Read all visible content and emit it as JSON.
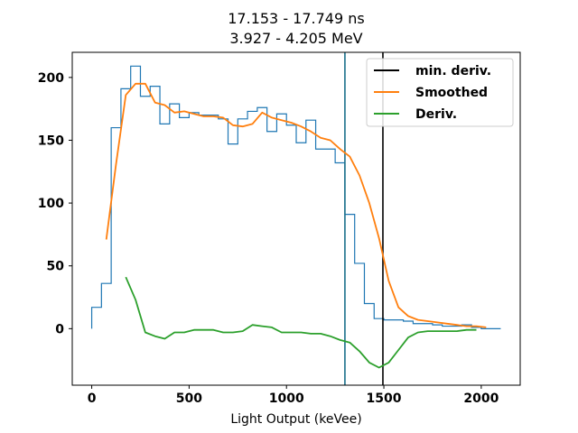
{
  "chart_data": {
    "type": "line",
    "title_lines": [
      "17.153 - 17.749 ns",
      "3.927 - 4.205 MeV"
    ],
    "xlabel": "Light Output (keVee)",
    "ylabel": "",
    "xlim": [
      -100,
      2200
    ],
    "ylim": [
      -45,
      220
    ],
    "xticks": [
      0,
      500,
      1000,
      1500,
      2000
    ],
    "yticks": [
      0,
      50,
      100,
      150,
      200
    ],
    "grid": false,
    "legend_position": "upper right",
    "histogram": {
      "name": "",
      "color": "#1f77b4",
      "bin_width": 50,
      "edges": [
        0,
        50,
        100,
        150,
        200,
        250,
        300,
        350,
        400,
        450,
        500,
        550,
        600,
        650,
        700,
        750,
        800,
        850,
        900,
        950,
        1000,
        1050,
        1100,
        1150,
        1200,
        1250,
        1300,
        1350,
        1400,
        1450,
        1500,
        1550,
        1600,
        1650,
        1700,
        1750,
        1800,
        1850,
        1900,
        1950,
        2000,
        2050,
        2100
      ],
      "counts": [
        17,
        36,
        160,
        191,
        209,
        185,
        193,
        163,
        179,
        168,
        172,
        170,
        170,
        167,
        147,
        167,
        173,
        176,
        157,
        171,
        162,
        148,
        166,
        143,
        143,
        132,
        91,
        52,
        20,
        8,
        7,
        7,
        6,
        4,
        4,
        3,
        2,
        2,
        3,
        1,
        0,
        0
      ]
    },
    "vertical_lines": [
      {
        "name": "",
        "x": 1300,
        "color": "#1a6f8a"
      },
      {
        "name": "min. deriv.",
        "x": 1495,
        "color": "#000000"
      }
    ],
    "series": [
      {
        "name": "Smoothed",
        "color": "#ff7f0e",
        "x": [
          75,
          125,
          175,
          225,
          275,
          325,
          375,
          425,
          475,
          525,
          575,
          625,
          675,
          725,
          775,
          825,
          875,
          925,
          975,
          1025,
          1075,
          1125,
          1175,
          1225,
          1275,
          1325,
          1375,
          1425,
          1475,
          1525,
          1575,
          1625,
          1675,
          1725,
          1775,
          1825,
          1875,
          1925,
          1975,
          2025
        ],
        "y": [
          71,
          131,
          186,
          195,
          195,
          180,
          178,
          172,
          173,
          171,
          169,
          169,
          168,
          162,
          161,
          163,
          172,
          168,
          166,
          164,
          161,
          157,
          152,
          150,
          143,
          137,
          122,
          100,
          72,
          38,
          17,
          10,
          7,
          6,
          5,
          4,
          3,
          2,
          2,
          1
        ]
      },
      {
        "name": "Deriv.",
        "color": "#2ca02c",
        "x": [
          175,
          225,
          275,
          325,
          375,
          425,
          475,
          525,
          575,
          625,
          675,
          725,
          775,
          825,
          875,
          925,
          975,
          1025,
          1075,
          1125,
          1175,
          1225,
          1275,
          1325,
          1375,
          1425,
          1475,
          1525,
          1575,
          1625,
          1675,
          1725,
          1775,
          1825,
          1875,
          1925,
          1975
        ],
        "y": [
          41,
          23,
          -3,
          -6,
          -8,
          -3,
          -3,
          -1,
          -1,
          -1,
          -3,
          -3,
          -2,
          3,
          2,
          1,
          -3,
          -3,
          -3,
          -4,
          -4,
          -6,
          -9,
          -11,
          -18,
          -27,
          -31,
          -27,
          -17,
          -7,
          -3,
          -2,
          -2,
          -2,
          -2,
          -1,
          -1
        ]
      }
    ]
  }
}
